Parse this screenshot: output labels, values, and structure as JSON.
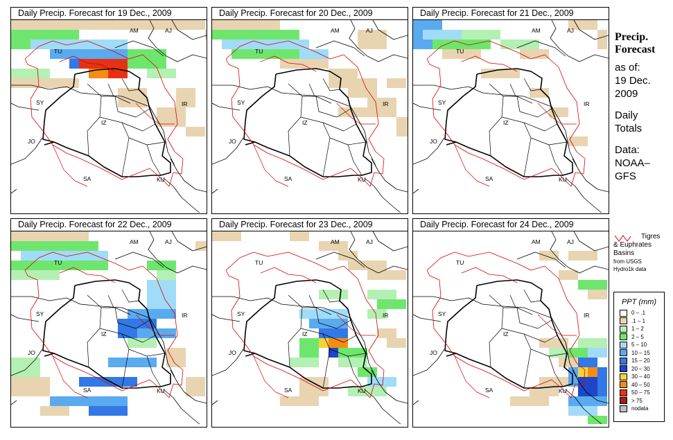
{
  "panels": [
    {
      "title": "Daily Precip. Forecast for  19 Dec., 2009"
    },
    {
      "title": "Daily Precip. Forecast for  20 Dec., 2009"
    },
    {
      "title": "Daily Precip. Forecast for  21 Dec., 2009"
    },
    {
      "title": "Daily Precip. Forecast for  22 Dec., 2009"
    },
    {
      "title": "Daily Precip. Forecast for  23 Dec., 2009"
    },
    {
      "title": "Daily Precip. Forecast for  24 Dec., 2009"
    }
  ],
  "country_labels": {
    "AM": "AM",
    "AJ": "AJ",
    "TU": "TU",
    "SY": "SY",
    "IR": "IR",
    "JO": "JO",
    "SA": "SA",
    "KU": "KU",
    "IZ": "IZ"
  },
  "side": {
    "title_line1": "Precip.",
    "title_line2": "Forecast",
    "asof": "as of:",
    "date_line1": "19 Dec.",
    "date_line2": "2009",
    "daily_line1": "Daily",
    "daily_line2": "Totals",
    "data_line1": "Data:",
    "data_line2": "NOAA–",
    "data_line3": "GFS"
  },
  "basins_legend": {
    "line1": "Tigres",
    "line2": "& Euphrates",
    "line3": "Basins",
    "line4": "from USGS",
    "line5": "Hydro1k data"
  },
  "ppt_legend": {
    "title": "PPT (mm)",
    "classes": [
      {
        "label": "0 – .1",
        "color": "#ffffff"
      },
      {
        "label": ".1 – 1",
        "color": "#e8d4b0"
      },
      {
        "label": "1 – 2",
        "color": "#b4f0b4"
      },
      {
        "label": "2 – 5",
        "color": "#6ee66e"
      },
      {
        "label": "5 – 10",
        "color": "#a0dcf8"
      },
      {
        "label": "10 – 15",
        "color": "#5aaaf0"
      },
      {
        "label": "15 – 20",
        "color": "#3278e6"
      },
      {
        "label": "20 – 30",
        "color": "#1e46c8"
      },
      {
        "label": "30 – 40",
        "color": "#f5d23c"
      },
      {
        "label": "40 – 50",
        "color": "#f58c14"
      },
      {
        "label": "50 – 75",
        "color": "#e63214"
      },
      {
        "label": "> 75",
        "color": "#a01e14"
      },
      {
        "label": "nodata",
        "color": "#bebebe"
      }
    ]
  }
}
